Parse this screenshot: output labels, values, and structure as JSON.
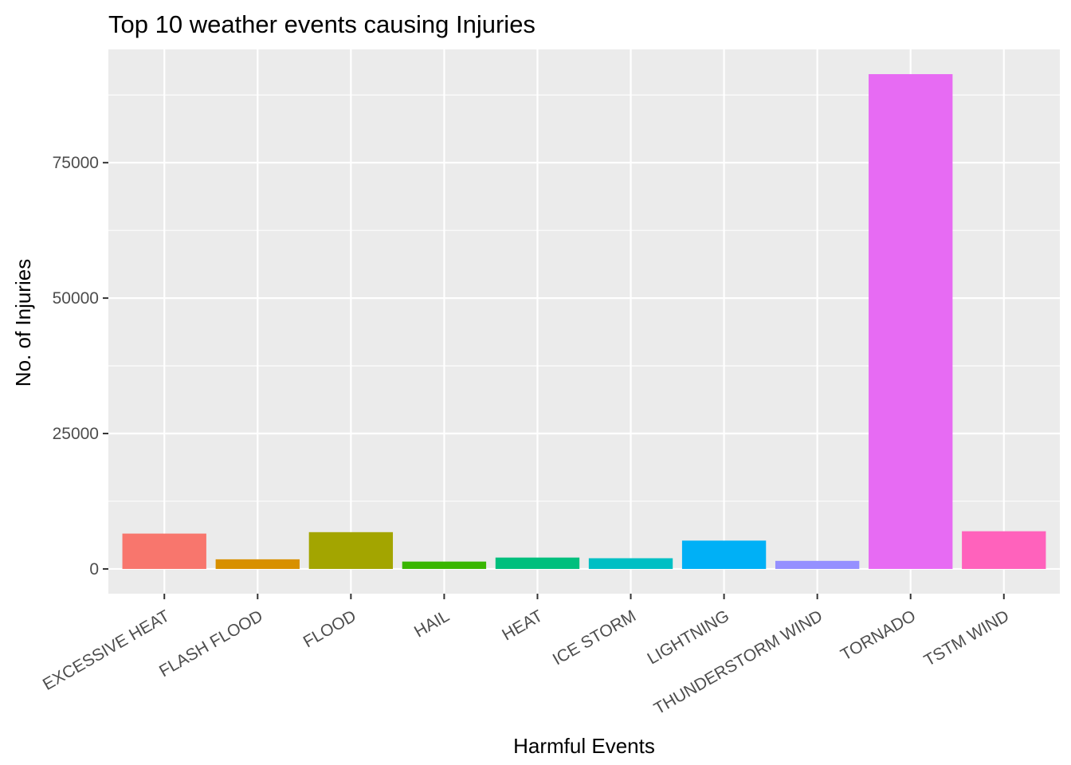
{
  "chart_data": {
    "type": "bar",
    "title": "Top 10 weather events causing Injuries",
    "xlabel": "Harmful Events",
    "ylabel": "No. of Injuries",
    "categories": [
      "EXCESSIVE HEAT",
      "FLASH FLOOD",
      "FLOOD",
      "HAIL",
      "HEAT",
      "ICE STORM",
      "LIGHTNING",
      "THUNDERSTORM WIND",
      "TORNADO",
      "TSTM WIND"
    ],
    "values": [
      6525,
      1777,
      6789,
      1361,
      2100,
      1975,
      5230,
      1488,
      91346,
      6957
    ],
    "colors": [
      "#F8766D",
      "#D89000",
      "#A3A500",
      "#39B600",
      "#00BF7D",
      "#00BFC4",
      "#00B0F6",
      "#9590FF",
      "#E76BF3",
      "#FF62BC"
    ],
    "yticks": [
      0,
      25000,
      50000,
      75000
    ],
    "ylim": [
      -4567,
      95913
    ],
    "grid": true,
    "legend": "none",
    "panel_background": "#EBEBEB",
    "grid_color": "#FFFFFF"
  }
}
